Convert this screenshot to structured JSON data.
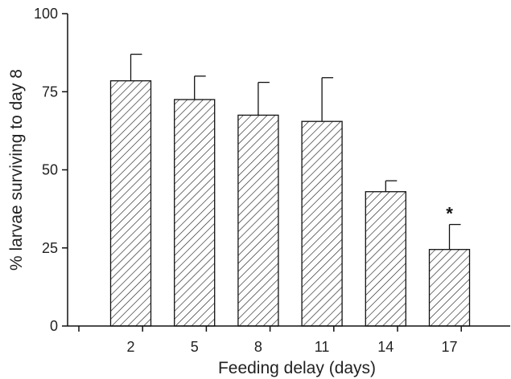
{
  "chart_data": {
    "type": "bar",
    "categories": [
      "2",
      "5",
      "8",
      "11",
      "14",
      "17"
    ],
    "values": [
      78.5,
      72.5,
      67.5,
      65.5,
      43,
      24.5
    ],
    "errors": [
      8.5,
      7.5,
      10.5,
      14,
      3.5,
      8
    ],
    "xlabel": "Feeding delay (days)",
    "ylabel": "% larvae surviving to day 8",
    "ylim": [
      0,
      100
    ],
    "yticks": [
      0,
      25,
      50,
      75,
      100
    ],
    "annotations": [
      {
        "category": "17",
        "text": "*"
      }
    ],
    "grid": false,
    "bar_pattern": "diagonal-hatch"
  }
}
